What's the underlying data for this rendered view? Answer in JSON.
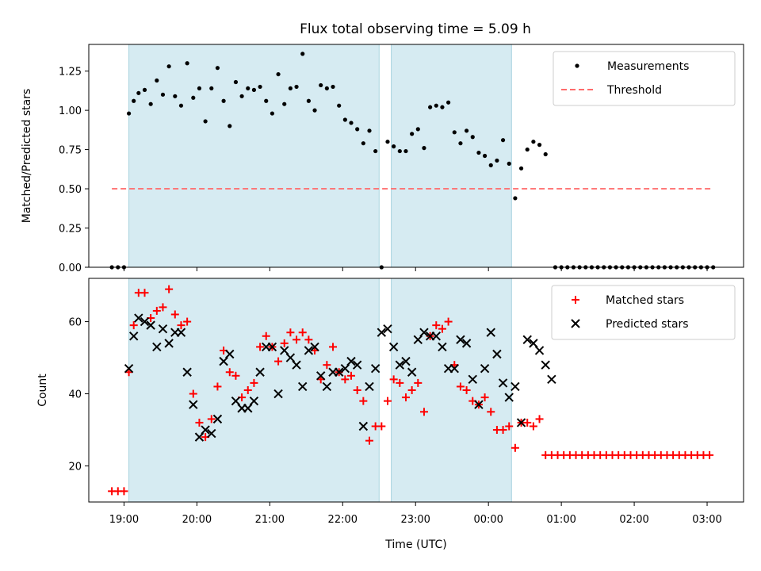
{
  "chart_data": [
    {
      "type": "scatter",
      "title": "Flux total observing time = 5.09 h",
      "xlabel": "",
      "ylabel": "Matched/Predicted stars",
      "xlim": [
        "18:31",
        "03:30"
      ],
      "ylim": [
        0,
        1.42
      ],
      "yticks": [
        0.0,
        0.25,
        0.5,
        0.75,
        1.0,
        1.25
      ],
      "ytick_labels": [
        "0.00",
        "0.25",
        "0.50",
        "0.75",
        "1.00",
        "1.25"
      ],
      "grid": false,
      "legend_position": "top-right",
      "shaded_intervals": [
        [
          "19:04",
          "22:30"
        ],
        [
          "22:40",
          "00:19"
        ]
      ],
      "threshold": {
        "name": "Threshold",
        "y": 0.5,
        "x_range": [
          "18:50",
          "03:05"
        ],
        "color": "#ff6b6b"
      },
      "series": [
        {
          "name": "Measurements",
          "color": "#000000",
          "marker": "dot",
          "x": [
            "18:50",
            "18:55",
            "19:00",
            "19:04",
            "19:08",
            "19:12",
            "19:17",
            "19:22",
            "19:27",
            "19:32",
            "19:37",
            "19:42",
            "19:47",
            "19:52",
            "19:57",
            "20:02",
            "20:07",
            "20:12",
            "20:17",
            "20:22",
            "20:27",
            "20:32",
            "20:37",
            "20:42",
            "20:47",
            "20:52",
            "20:57",
            "21:02",
            "21:07",
            "21:12",
            "21:17",
            "21:22",
            "21:27",
            "21:32",
            "21:37",
            "21:42",
            "21:47",
            "21:52",
            "21:57",
            "22:02",
            "22:07",
            "22:12",
            "22:17",
            "22:22",
            "22:27",
            "22:32",
            "22:37",
            "22:42",
            "22:47",
            "22:52",
            "22:57",
            "23:02",
            "23:07",
            "23:12",
            "23:17",
            "23:22",
            "23:27",
            "23:32",
            "23:37",
            "23:42",
            "23:47",
            "23:52",
            "23:57",
            "00:02",
            "00:07",
            "00:12",
            "00:17",
            "00:22",
            "00:27",
            "00:32",
            "00:37",
            "00:42",
            "00:47",
            "00:55",
            "01:00",
            "01:05",
            "01:10",
            "01:15",
            "01:20",
            "01:25",
            "01:30",
            "01:35",
            "01:40",
            "01:45",
            "01:50",
            "01:55",
            "02:00",
            "02:05",
            "02:10",
            "02:15",
            "02:20",
            "02:25",
            "02:30",
            "02:35",
            "02:40",
            "02:45",
            "02:50",
            "02:55",
            "03:00",
            "03:05"
          ],
          "y": [
            0,
            0,
            0,
            0.98,
            1.06,
            1.11,
            1.13,
            1.04,
            1.19,
            1.1,
            1.28,
            1.09,
            1.03,
            1.3,
            1.08,
            1.14,
            0.93,
            1.14,
            1.27,
            1.06,
            0.9,
            1.18,
            1.09,
            1.14,
            1.13,
            1.15,
            1.06,
            0.98,
            1.23,
            1.04,
            1.14,
            1.15,
            1.36,
            1.06,
            1.0,
            1.16,
            1.14,
            1.15,
            1.03,
            0.94,
            0.92,
            0.88,
            0.79,
            0.87,
            0.74,
            0,
            0.8,
            0.77,
            0.74,
            0.74,
            0.85,
            0.88,
            0.76,
            1.02,
            1.03,
            1.02,
            1.05,
            0.86,
            0.79,
            0.87,
            0.83,
            0.73,
            0.71,
            0.65,
            0.68,
            0.81,
            0.66,
            0.44,
            0.63,
            0.75,
            0.8,
            0.78,
            0.72,
            0,
            0,
            0,
            0,
            0,
            0,
            0,
            0,
            0,
            0,
            0,
            0,
            0,
            0,
            0,
            0,
            0,
            0,
            0,
            0,
            0,
            0,
            0,
            0,
            0,
            0,
            0
          ]
        }
      ]
    },
    {
      "type": "scatter",
      "title": "",
      "xlabel": "Time (UTC)",
      "ylabel": "Count",
      "xlim": [
        "18:31",
        "03:30"
      ],
      "ylim": [
        10,
        72
      ],
      "yticks": [
        20,
        40,
        60
      ],
      "ytick_labels": [
        "20",
        "40",
        "60"
      ],
      "xticks": [
        "19:00",
        "20:00",
        "21:00",
        "22:00",
        "23:00",
        "00:00",
        "01:00",
        "02:00",
        "03:00"
      ],
      "grid": false,
      "legend_position": "top-right",
      "shaded_intervals": [
        [
          "19:04",
          "22:30"
        ],
        [
          "22:40",
          "00:19"
        ]
      ],
      "series": [
        {
          "name": "Matched stars",
          "color": "#ff0000",
          "marker": "plus",
          "x": [
            "18:50",
            "18:55",
            "19:00",
            "19:04",
            "19:08",
            "19:12",
            "19:17",
            "19:22",
            "19:27",
            "19:32",
            "19:37",
            "19:42",
            "19:47",
            "19:52",
            "19:57",
            "20:02",
            "20:07",
            "20:12",
            "20:17",
            "20:22",
            "20:27",
            "20:32",
            "20:37",
            "20:42",
            "20:47",
            "20:52",
            "20:57",
            "21:02",
            "21:07",
            "21:12",
            "21:17",
            "21:22",
            "21:27",
            "21:32",
            "21:37",
            "21:42",
            "21:47",
            "21:52",
            "21:57",
            "22:02",
            "22:07",
            "22:12",
            "22:17",
            "22:22",
            "22:27",
            "22:32",
            "22:37",
            "22:42",
            "22:47",
            "22:52",
            "22:57",
            "23:02",
            "23:07",
            "23:12",
            "23:17",
            "23:22",
            "23:27",
            "23:32",
            "23:37",
            "23:42",
            "23:47",
            "23:52",
            "23:57",
            "00:02",
            "00:07",
            "00:12",
            "00:17",
            "00:22",
            "00:27",
            "00:32",
            "00:37",
            "00:42",
            "00:47",
            "00:52",
            "00:57",
            "01:02",
            "01:07",
            "01:12",
            "01:17",
            "01:22",
            "01:27",
            "01:32",
            "01:37",
            "01:42",
            "01:47",
            "01:52",
            "01:57",
            "02:02",
            "02:07",
            "02:12",
            "02:17",
            "02:22",
            "02:27",
            "02:32",
            "02:37",
            "02:42",
            "02:47",
            "02:52",
            "02:57",
            "03:02"
          ],
          "y": [
            13,
            13,
            13,
            46,
            59,
            68,
            68,
            61,
            63,
            64,
            69,
            62,
            59,
            60,
            40,
            32,
            28,
            33,
            42,
            52,
            46,
            45,
            39,
            41,
            43,
            53,
            56,
            53,
            49,
            54,
            57,
            55,
            57,
            55,
            52,
            44,
            48,
            53,
            46,
            44,
            45,
            41,
            38,
            27,
            31,
            31,
            38,
            44,
            43,
            39,
            41,
            43,
            35,
            56,
            59,
            58,
            60,
            48,
            42,
            41,
            38,
            37,
            39,
            35,
            30,
            30,
            31,
            25,
            32,
            32,
            31,
            33,
            23,
            23,
            23,
            23,
            23,
            23,
            23,
            23,
            23,
            23,
            23,
            23,
            23,
            23,
            23,
            23,
            23,
            23,
            23,
            23,
            23,
            23,
            23,
            23,
            23,
            23,
            23,
            23
          ]
        },
        {
          "name": "Predicted stars",
          "color": "#000000",
          "marker": "x",
          "x": [
            "19:04",
            "19:08",
            "19:12",
            "19:17",
            "19:22",
            "19:27",
            "19:32",
            "19:37",
            "19:42",
            "19:47",
            "19:52",
            "19:57",
            "20:02",
            "20:07",
            "20:12",
            "20:17",
            "20:22",
            "20:27",
            "20:32",
            "20:37",
            "20:42",
            "20:47",
            "20:52",
            "20:57",
            "21:02",
            "21:07",
            "21:12",
            "21:17",
            "21:22",
            "21:27",
            "21:32",
            "21:37",
            "21:42",
            "21:47",
            "21:52",
            "21:57",
            "22:02",
            "22:07",
            "22:12",
            "22:17",
            "22:22",
            "22:27",
            "22:32",
            "22:37",
            "22:42",
            "22:47",
            "22:52",
            "22:57",
            "23:02",
            "23:07",
            "23:12",
            "23:17",
            "23:22",
            "23:27",
            "23:32",
            "23:37",
            "23:42",
            "23:47",
            "23:52",
            "23:57",
            "00:02",
            "00:07",
            "00:12",
            "00:17",
            "00:22",
            "00:27",
            "00:32",
            "00:37",
            "00:42",
            "00:47",
            "00:52"
          ],
          "y": [
            47,
            56,
            61,
            60,
            59,
            53,
            58,
            54,
            57,
            57,
            46,
            37,
            28,
            30,
            29,
            33,
            49,
            51,
            38,
            36,
            36,
            38,
            46,
            53,
            53,
            40,
            52,
            50,
            48,
            42,
            52,
            53,
            45,
            42,
            46,
            46,
            47,
            49,
            48,
            31,
            42,
            47,
            57,
            58,
            53,
            48,
            49,
            46,
            55,
            57,
            56,
            56,
            53,
            47,
            47,
            55,
            54,
            44,
            37,
            47,
            57,
            51,
            43,
            39,
            42,
            32,
            55,
            54,
            52,
            48,
            44
          ]
        }
      ]
    }
  ]
}
